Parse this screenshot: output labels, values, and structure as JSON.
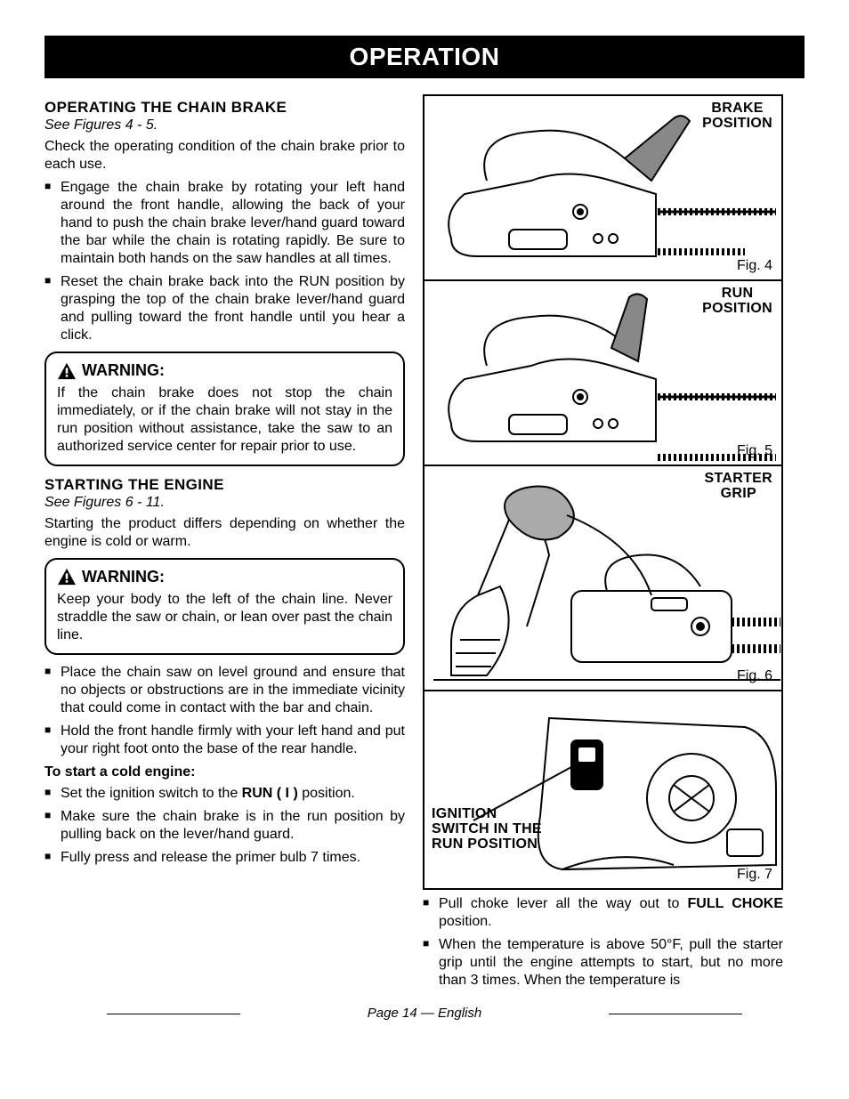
{
  "header": "OPERATION",
  "left": {
    "sec1_title": "OPERATING THE CHAIN BRAKE",
    "sec1_figref": "See Figures 4 - 5.",
    "sec1_intro": "Check the operating condition of the chain brake prior to each use.",
    "sec1_bullets": [
      "Engage the chain brake by rotating your left hand around the front handle, allowing the back of your hand to push the chain brake lever/hand guard toward the bar while the chain is rotating rapidly. Be sure to maintain both hands on the saw handles at all times.",
      "Reset the chain brake back into the RUN position by grasping the top of the chain brake lever/hand guard and pulling toward the front handle until you hear a click."
    ],
    "warn1_title": "WARNING:",
    "warn1_body": "If the chain brake does not stop the chain immediately, or if the chain brake will not stay in the run position without assistance, take the saw to an authorized service center for repair prior to use.",
    "sec2_title": "STARTING THE ENGINE",
    "sec2_figref": "See Figures 6 - 11.",
    "sec2_intro": "Starting the product differs depending on whether the engine is cold or warm.",
    "warn2_title": "WARNING:",
    "warn2_body": "Keep your body to the left of the chain line. Never straddle the saw or chain, or lean over past the chain line.",
    "sec2_bullets": [
      "Place the chain saw on level ground and ensure that no objects or obstructions are in the immediate vicinity that could come in contact with the bar and chain.",
      "Hold the front handle firmly with your left hand and put your right foot onto the base of the rear handle."
    ],
    "coldstart_label": "To start a cold engine:",
    "coldstart_bullets_pre": "Set the ignition switch to the ",
    "coldstart_bullets_bold": "RUN ( I )",
    "coldstart_bullets_post": " position.",
    "coldstart_b2": "Make sure the chain brake is in the run position by pulling back on the lever/hand guard.",
    "coldstart_b3": "Fully press and release the primer bulb 7 times."
  },
  "figures": {
    "f4_cap": "BRAKE\nPOSITION",
    "f4_label": "Fig. 4",
    "f5_cap": "RUN\nPOSITION",
    "f5_label": "Fig. 5",
    "f6_cap": "STARTER\nGRIP",
    "f6_label": "Fig. 6",
    "f7_cap": "IGNITION\nSWITCH IN THE\nRUN POSITION",
    "f7_label": "Fig. 7"
  },
  "right_bottom": {
    "b1_pre": "Pull choke lever all the way out to ",
    "b1_bold": "FULL CHOKE",
    "b1_post": " position.",
    "b2": "When the temperature is above 50°F, pull the starter grip until the engine attempts to start, but no more than 3 times. When the temperature is"
  },
  "footer": "Page 14 — English",
  "colors": {
    "text": "#000000",
    "bg": "#ffffff"
  }
}
